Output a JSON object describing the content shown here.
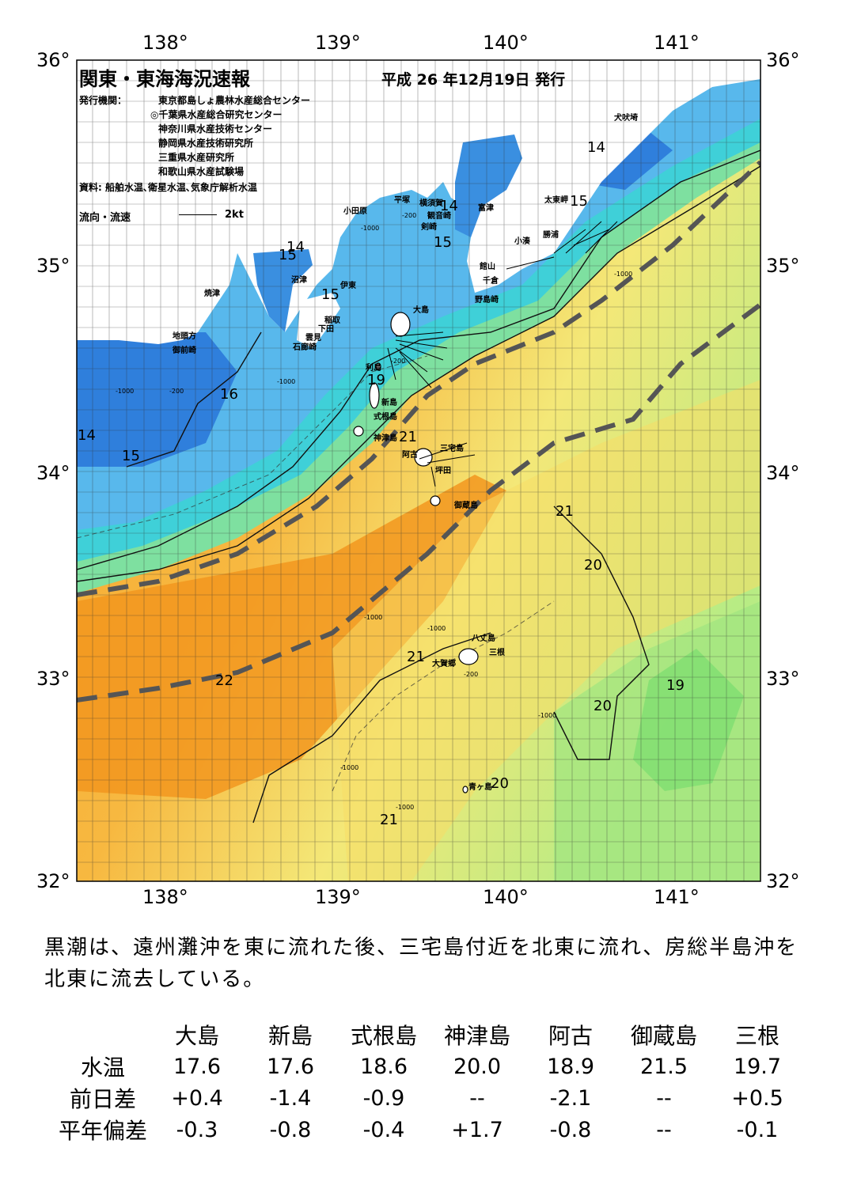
{
  "header": {
    "title": "関東・東海海況速報",
    "issue_date": "平成 26 年12月19日 発行",
    "publisher_label": "発行機関：",
    "publishers": [
      "東京都島しょ農林水産総合センター",
      "◎千葉県水産総合研究センター",
      "神奈川県水産技術センター",
      "静岡県水産技術研究所",
      "三重県水産研究所",
      "和歌山県水産試験場"
    ],
    "source": "資料: 船舶水温､衛星水温､気象庁解析水温",
    "legend_label": "流向・流速",
    "legend_scale": "2kt"
  },
  "axes": {
    "lon_ticks": [
      "138°",
      "139°",
      "140°",
      "141°"
    ],
    "lat_ticks": [
      "36°",
      "35°",
      "34°",
      "33°",
      "32°"
    ]
  },
  "place_names": [
    "犬吠埼",
    "太東岬",
    "勝浦",
    "小湊",
    "富津",
    "横須賀",
    "観音崎",
    "剣崎",
    "平塚",
    "小田原",
    "館山",
    "千倉",
    "野島崎",
    "沼津",
    "伊東",
    "焼津",
    "稲取",
    "下田",
    "雲見",
    "石廊崎",
    "地頭方",
    "御前崎",
    "大島",
    "利島",
    "新島",
    "式根島",
    "神津島",
    "阿古",
    "坪田",
    "三宅島",
    "御蔵島",
    "八丈島",
    "三根",
    "大賀郷",
    "青ヶ島"
  ],
  "isotherm_labels": [
    "14",
    "15",
    "16",
    "19",
    "21",
    "20",
    "22"
  ],
  "isobath_labels": [
    "-200",
    "-1000"
  ],
  "summary": "黒潮は、遠州灘沖を東に流れた後、三宅島付近を北東に流れ、房総半島沖を北東に流去している。",
  "table": {
    "columns": [
      "大島",
      "新島",
      "式根島",
      "神津島",
      "阿古",
      "御蔵島",
      "三根"
    ],
    "rows": [
      {
        "label": "水温",
        "values": [
          "17.6",
          "17.6",
          "18.6",
          "20.0",
          "18.9",
          "21.5",
          "19.7"
        ]
      },
      {
        "label": "前日差",
        "values": [
          "+0.4",
          "-1.4",
          "-0.9",
          "--",
          "-2.1",
          "--",
          "+0.5"
        ]
      },
      {
        "label": "平年偏差",
        "values": [
          "-0.3",
          "-0.8",
          "-0.4",
          "+1.7",
          "-0.8",
          "--",
          "-0.1"
        ]
      }
    ]
  },
  "colors": {
    "kuroshio_axis": "#555555",
    "land": "#ffffff",
    "warm": "#f4a030",
    "cool": "#3a8fe0"
  }
}
